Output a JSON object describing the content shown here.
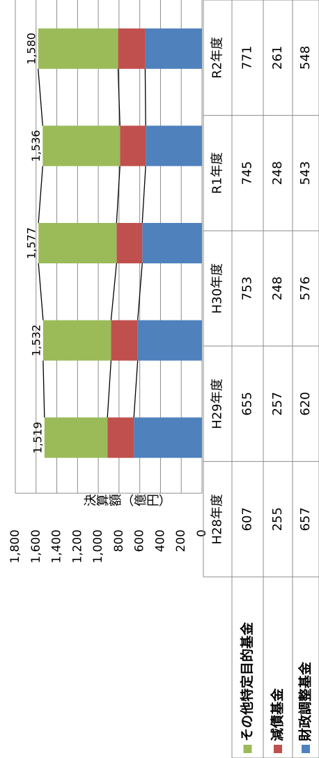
{
  "chart_data": {
    "type": "stacked_bar",
    "y_label": "決算額（億円）",
    "categories": [
      "H28年度",
      "H29年度",
      "H30年度",
      "R1年度",
      "R2年度"
    ],
    "series": [
      {
        "name": "その他特定目的基金",
        "color": "#9bbb59",
        "values": [
          607,
          655,
          753,
          745,
          771
        ]
      },
      {
        "name": "減債基金",
        "color": "#c0504d",
        "values": [
          255,
          257,
          248,
          248,
          261
        ]
      },
      {
        "name": "財政調整基金",
        "color": "#4f81bd",
        "values": [
          657,
          620,
          576,
          543,
          548
        ]
      }
    ],
    "totals": {
      "values": [
        1519,
        1532,
        1577,
        1536,
        1580
      ],
      "value_labels": [
        "1,519",
        "1,532",
        "1,577",
        "1,536",
        "1,580"
      ]
    },
    "ylim": [
      0,
      1800
    ],
    "yticks": [
      0,
      200,
      400,
      600,
      800,
      {
        "value": 1000,
        "label": "1,000"
      },
      {
        "value": 1200,
        "label": "1,200"
      },
      {
        "value": 1400,
        "label": "1,400"
      },
      {
        "value": 1600,
        "label": "1,600"
      },
      {
        "value": 1800,
        "label": "1,800"
      }
    ],
    "grid": true
  }
}
